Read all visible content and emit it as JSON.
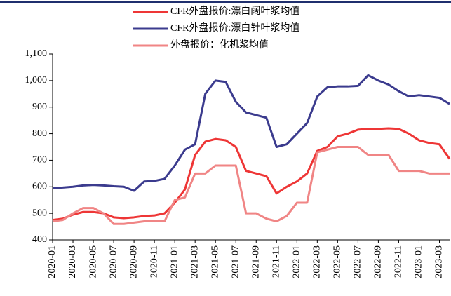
{
  "chart_data": {
    "type": "line",
    "x": [
      "2020-01",
      "2020-02",
      "2020-03",
      "2020-04",
      "2020-05",
      "2020-06",
      "2020-07",
      "2020-08",
      "2020-09",
      "2020-10",
      "2020-11",
      "2020-12",
      "2021-01",
      "2021-02",
      "2021-03",
      "2021-04",
      "2021-05",
      "2021-06",
      "2021-07",
      "2021-08",
      "2021-09",
      "2021-10",
      "2021-11",
      "2021-12",
      "2022-01",
      "2022-02",
      "2022-03",
      "2022-04",
      "2022-05",
      "2022-06",
      "2022-07",
      "2022-08",
      "2022-09",
      "2022-10",
      "2022-11",
      "2022-12",
      "2023-01",
      "2023-02",
      "2023-03",
      "2023-04"
    ],
    "series": [
      {
        "name": "CFR外盘报价:漂白阔叶浆均值",
        "color": "#ee3636",
        "values": [
          475,
          480,
          495,
          505,
          505,
          500,
          485,
          482,
          485,
          490,
          492,
          500,
          540,
          590,
          720,
          770,
          780,
          775,
          750,
          660,
          650,
          640,
          575,
          600,
          620,
          650,
          735,
          750,
          790,
          800,
          815,
          818,
          818,
          820,
          818,
          800,
          775,
          765,
          760,
          705
        ]
      },
      {
        "name": "CFR外盘报价:漂白针叶浆均值",
        "color": "#3b3b8e",
        "values": [
          595,
          597,
          600,
          605,
          607,
          605,
          602,
          600,
          585,
          620,
          622,
          630,
          680,
          740,
          760,
          950,
          1000,
          995,
          920,
          880,
          870,
          860,
          750,
          760,
          800,
          840,
          940,
          975,
          978,
          978,
          980,
          1020,
          1000,
          985,
          960,
          940,
          945,
          940,
          935,
          912
        ]
      },
      {
        "name": "外盘报价：化机浆均值",
        "color": "#f08585",
        "values": [
          470,
          475,
          500,
          520,
          520,
          500,
          460,
          460,
          465,
          470,
          470,
          470,
          550,
          560,
          650,
          650,
          680,
          680,
          680,
          500,
          500,
          480,
          470,
          490,
          540,
          540,
          730,
          740,
          750,
          750,
          750,
          720,
          720,
          720,
          660,
          660,
          660,
          650,
          650,
          650
        ]
      }
    ],
    "xlim": [
      "2020-01",
      "2023-04"
    ],
    "xticks": [
      "2020-01",
      "2020-03",
      "2020-05",
      "2020-07",
      "2020-09",
      "2020-11",
      "2021-01",
      "2021-03",
      "2021-05",
      "2021-07",
      "2021-09",
      "2021-11",
      "2022-01",
      "2022-03",
      "2022-05",
      "2022-07",
      "2022-09",
      "2022-11",
      "2023-01",
      "2023-03"
    ],
    "ylim": [
      400,
      1100
    ],
    "yticks": [
      400,
      500,
      600,
      700,
      800,
      900,
      {
        "value": 1000,
        "label": "1,000"
      },
      {
        "value": 1100,
        "label": "1,100"
      }
    ],
    "legend": "top"
  }
}
